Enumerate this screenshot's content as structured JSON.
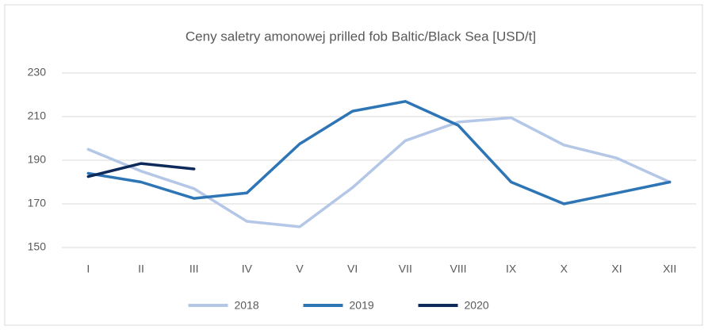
{
  "chart_data": {
    "type": "line",
    "title": "Ceny saletry amonowej prilled fob Baltic/Black Sea [USD/t]",
    "categories": [
      "I",
      "II",
      "III",
      "IV",
      "V",
      "VI",
      "VII",
      "VIII",
      "IX",
      "X",
      "XI",
      "XII"
    ],
    "series": [
      {
        "name": "2018",
        "color": "#b4c7e7",
        "values": [
          195,
          185,
          177,
          162,
          159.5,
          177.5,
          199,
          207.5,
          209.5,
          197,
          191,
          180
        ]
      },
      {
        "name": "2019",
        "color": "#2e75b6",
        "values": [
          184,
          180,
          172.5,
          175,
          197.5,
          212.5,
          217,
          206,
          180,
          170,
          175,
          180
        ]
      },
      {
        "name": "2020",
        "color": "#0d2a5b",
        "values": [
          182.5,
          188.5,
          186,
          null,
          null,
          null,
          null,
          null,
          null,
          null,
          null,
          null
        ]
      }
    ],
    "ylim": [
      150,
      230
    ],
    "yticks": [
      150,
      170,
      190,
      210,
      230
    ],
    "grid": true,
    "legend": "bottom"
  }
}
